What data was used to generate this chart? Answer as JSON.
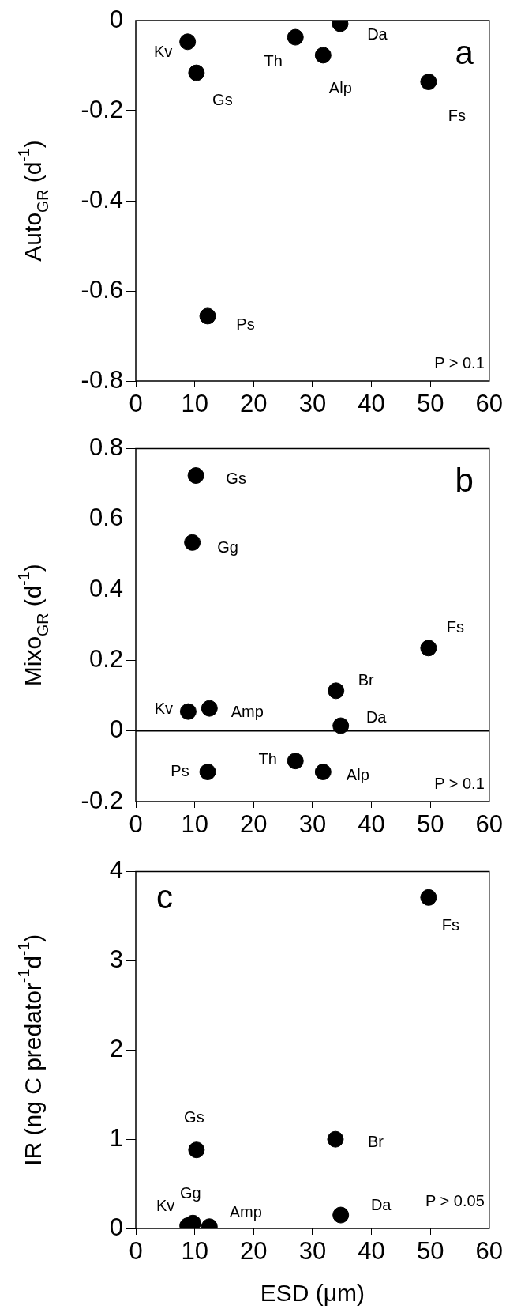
{
  "chart_data": [
    {
      "type": "scatter",
      "ylabel": "Auto$_{GR}$ (d$^{-1}$)",
      "x": [
        8.8,
        10.3,
        27.1,
        34.7,
        31.8,
        49.7,
        12.2
      ],
      "values": [
        -0.047,
        -0.116,
        -0.037,
        -0.007,
        -0.077,
        -0.136,
        -0.656
      ],
      "value_labels": [
        "Kv",
        "Gs",
        "Th",
        "Da",
        "Alp",
        "Fs",
        "Ps"
      ],
      "color": "#000000",
      "marker": "circle",
      "xlim": [
        0,
        60
      ],
      "xticks": [
        0,
        10,
        20,
        30,
        40,
        50,
        60
      ],
      "ylim": [
        -0.8,
        0
      ],
      "yticks": [
        -0.8,
        -0.6,
        -0.4,
        -0.2,
        0
      ],
      "annotations": [
        "a",
        "P > 0.1"
      ],
      "grid": false,
      "legend": false
    },
    {
      "type": "scatter",
      "ylabel": "Mixo$_{GR}$ (d$^{-1}$)",
      "x": [
        10.2,
        9.6,
        49.7,
        34.0,
        8.9,
        12.5,
        34.8,
        27.1,
        12.2,
        31.8
      ],
      "values": [
        0.724,
        0.534,
        0.235,
        0.114,
        0.055,
        0.064,
        0.015,
        -0.085,
        -0.116,
        -0.116
      ],
      "value_labels": [
        "Gs",
        "Gg",
        "Fs",
        "Br",
        "Kv",
        "Amp",
        "Da",
        "Th",
        "Ps",
        "Alp"
      ],
      "color": "#000000",
      "marker": "circle",
      "xlim": [
        0,
        60
      ],
      "xticks": [
        0,
        10,
        20,
        30,
        40,
        50,
        60
      ],
      "ylim": [
        -0.2,
        0.8
      ],
      "yticks": [
        -0.2,
        0,
        0.2,
        0.4,
        0.6,
        0.8
      ],
      "ref_lines": [
        {
          "axis": "y",
          "value": 0,
          "color": "#000000"
        }
      ],
      "annotations": [
        "b",
        "P > 0.1"
      ],
      "grid": false,
      "legend": false
    },
    {
      "type": "scatter",
      "ylabel": "IR (ng C predator$^{-1}$d$^{-1}$)",
      "xlabel": "ESD (μm)",
      "x": [
        49.7,
        10.3,
        33.9,
        34.8,
        8.8,
        9.7,
        12.5
      ],
      "values": [
        3.71,
        0.88,
        1.0,
        0.15,
        0.03,
        0.06,
        0.02
      ],
      "value_labels": [
        "Fs",
        "Gs",
        "Br",
        "Da",
        "Kv",
        "Gg",
        "Amp"
      ],
      "color": "#000000",
      "marker": "circle",
      "xlim": [
        0,
        60
      ],
      "xticks": [
        0,
        10,
        20,
        30,
        40,
        50,
        60
      ],
      "ylim": [
        0,
        4
      ],
      "yticks": [
        0,
        1,
        2,
        3,
        4
      ],
      "annotations": [
        "c",
        "P > 0.05"
      ],
      "grid": false,
      "legend": false
    }
  ]
}
